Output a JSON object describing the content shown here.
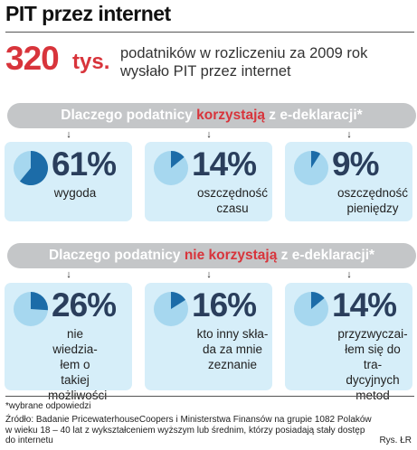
{
  "title": "PIT przez internet",
  "headline": {
    "number": "320",
    "unit": "tys.",
    "text_line1": "podatników w rozliczeniu za 2009 rok",
    "text_line2": "wysłało PIT przez internet"
  },
  "section_use": {
    "heading_before": "Dlaczego podatnicy ",
    "heading_highlight": "korzystają",
    "heading_after": " z e-deklaracji*",
    "items": [
      {
        "percent": 61,
        "label": "61%",
        "caption": [
          "wygoda"
        ]
      },
      {
        "percent": 14,
        "label": "14%",
        "caption": [
          "oszczędność",
          "czasu"
        ]
      },
      {
        "percent": 9,
        "label": "9%",
        "caption": [
          "oszczędność",
          "pieniędzy"
        ]
      }
    ]
  },
  "section_notuse": {
    "heading_before": "Dlaczego podatnicy ",
    "heading_highlight": "nie korzystają",
    "heading_after": " z e-deklaracji*",
    "items": [
      {
        "percent": 26,
        "label": "26%",
        "caption": [
          "nie wiedzia-",
          "łem o takiej",
          "możliwości"
        ]
      },
      {
        "percent": 16,
        "label": "16%",
        "caption": [
          "kto inny skła-",
          "da za mnie",
          "zeznanie"
        ]
      },
      {
        "percent": 14,
        "label": "14%",
        "caption": [
          "przyzwyczai-",
          "łem się do tra-",
          "dycyjnych",
          "metod"
        ]
      }
    ]
  },
  "arrow_symbol": "↓",
  "footnote": "*wybrane odpowiedzi",
  "source_line1": "Źródło: Badanie PricewaterhouseCoopers i Ministerstwa Finansów na grupie 1082 Polaków",
  "source_line2": "w wieku 18 – 40 lat z wykształceniem wyższym lub średnim, którzy posiadają stały dostęp",
  "source_line3": "do internetu",
  "credit": "Rys. ŁR",
  "colors": {
    "accent_red": "#d8343b",
    "card_bg": "#d6eef9",
    "pie_light": "#a6d7ef",
    "pie_dark": "#1c6ca8",
    "banner_bg": "#c4c6c8",
    "percent_text": "#2a3e5c"
  }
}
